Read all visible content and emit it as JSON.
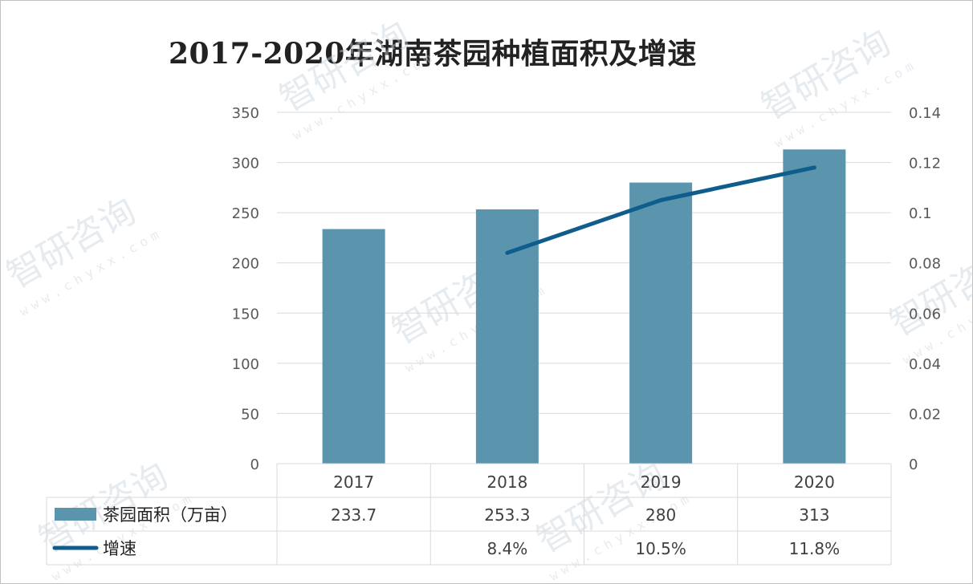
{
  "chart_data": {
    "type": "bar",
    "title": "2017-2020年湖南茶园种植面积及增速",
    "categories": [
      "2017",
      "2018",
      "2019",
      "2020"
    ],
    "series": [
      {
        "name": "茶园面积（万亩）",
        "kind": "bar",
        "axis": "left",
        "values": [
          233.7,
          253.3,
          280,
          313
        ],
        "labels": [
          "233.7",
          "253.3",
          "280",
          "313"
        ],
        "color": "#5b94ad"
      },
      {
        "name": "增速",
        "kind": "line",
        "axis": "right",
        "values": [
          null,
          0.084,
          0.105,
          0.118
        ],
        "labels": [
          "",
          "8.4%",
          "10.5%",
          "11.8%"
        ],
        "color": "#0f5d8c"
      }
    ],
    "y_left": {
      "min": 0,
      "max": 350,
      "ticks": [
        "0",
        "50",
        "100",
        "150",
        "200",
        "250",
        "300",
        "350"
      ]
    },
    "y_right": {
      "min": 0,
      "max": 0.14,
      "ticks": [
        "0",
        "0.02",
        "0.04",
        "0.06",
        "0.08",
        "0.1",
        "0.12",
        "0.14"
      ]
    },
    "grid": true,
    "legend": "data-table"
  },
  "watermark": {
    "brand": "智研咨询",
    "url": "www.chyxx.com"
  }
}
